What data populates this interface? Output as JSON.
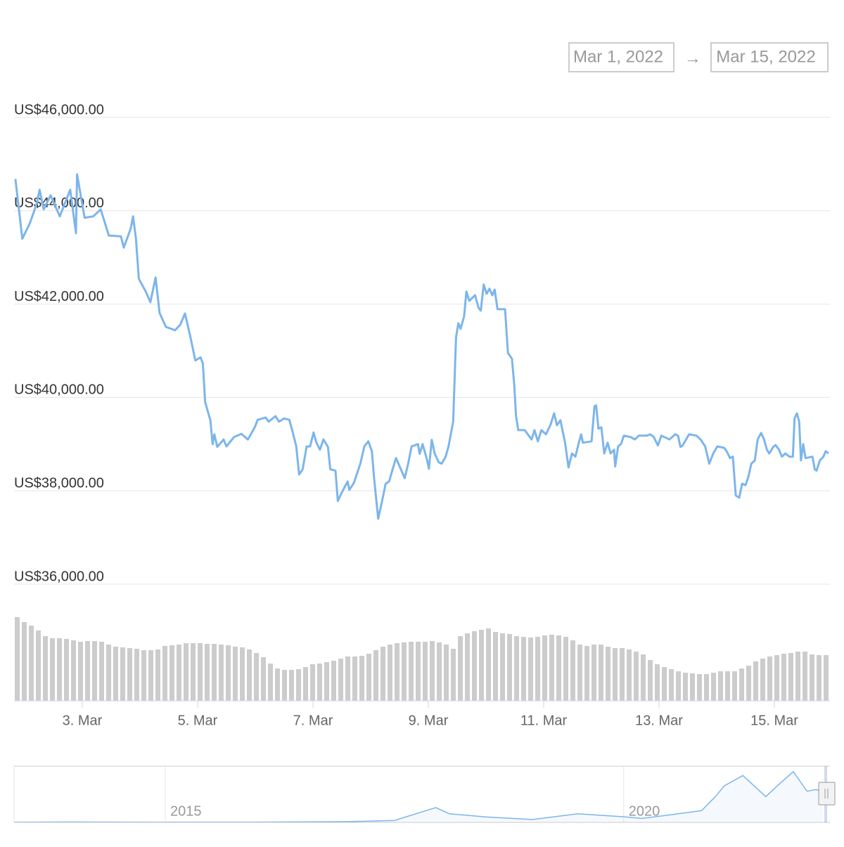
{
  "date_range": {
    "from": "Mar 1, 2022",
    "separator": "→",
    "to": "Mar 15, 2022"
  },
  "chart_data": {
    "type": "line",
    "color": "#7cb5ec",
    "x": [
      1.84,
      1.96,
      2.09,
      2.21,
      2.26,
      2.33,
      2.45,
      2.61,
      2.79,
      2.89,
      2.91,
      3.04,
      3.19,
      3.32,
      3.46,
      3.67,
      3.72,
      3.84,
      3.88,
      3.93,
      3.98,
      4.1,
      4.18,
      4.27,
      4.34,
      4.45,
      4.61,
      4.7,
      4.78,
      4.87,
      4.96,
      5.05,
      5.09,
      5.13,
      5.22,
      5.26,
      5.29,
      5.34,
      5.45,
      5.5,
      5.63,
      5.76,
      5.87,
      5.99,
      6.04,
      6.18,
      6.23,
      6.35,
      6.41,
      6.5,
      6.59,
      6.65,
      6.71,
      6.76,
      6.82,
      6.89,
      6.95,
      7.01,
      7.06,
      7.12,
      7.18,
      7.26,
      7.3,
      7.39,
      7.43,
      7.49,
      7.6,
      7.63,
      7.71,
      7.82,
      7.89,
      7.96,
      8.02,
      8.06,
      8.13,
      8.2,
      8.26,
      8.32,
      8.38,
      8.44,
      8.51,
      8.59,
      8.65,
      8.71,
      8.82,
      8.85,
      8.9,
      8.98,
      9.01,
      9.06,
      9.11,
      9.18,
      9.23,
      9.3,
      9.35,
      9.43,
      9.48,
      9.52,
      9.56,
      9.62,
      9.66,
      9.71,
      9.81,
      9.87,
      9.91,
      9.96,
      10.01,
      10.06,
      10.11,
      10.15,
      10.2,
      10.33,
      10.38,
      10.45,
      10.49,
      10.52,
      10.56,
      10.67,
      10.79,
      10.84,
      10.9,
      10.96,
      11.04,
      11.12,
      11.18,
      11.23,
      11.29,
      11.37,
      11.43,
      11.49,
      11.55,
      11.61,
      11.65,
      11.68,
      11.83,
      11.88,
      11.91,
      11.95,
      12.0,
      12.05,
      12.11,
      12.16,
      12.22,
      12.24,
      12.29,
      12.34,
      12.39,
      12.51,
      12.58,
      12.65,
      12.79,
      12.85,
      12.91,
      12.98,
      13.04,
      13.18,
      13.28,
      13.33,
      13.37,
      13.41,
      13.52,
      13.65,
      13.72,
      13.8,
      13.87,
      13.94,
      14.01,
      14.13,
      14.18,
      14.23,
      14.28,
      14.33,
      14.39,
      14.44,
      14.5,
      14.55,
      14.6,
      14.66,
      14.71,
      14.77,
      14.82,
      14.87,
      14.91,
      14.98,
      15.02,
      15.08,
      15.13,
      15.19,
      15.26,
      15.32,
      15.35,
      15.39,
      15.43,
      15.46,
      15.5,
      15.54,
      15.66,
      15.7,
      15.73,
      15.79,
      15.85,
      15.89,
      15.94
    ],
    "values": [
      44680,
      43400,
      43730,
      44150,
      44450,
      44030,
      44330,
      43880,
      44450,
      43520,
      44780,
      43850,
      43880,
      44030,
      43470,
      43450,
      43210,
      43620,
      43880,
      43400,
      42540,
      42270,
      42040,
      42570,
      41810,
      41510,
      41440,
      41560,
      41800,
      41320,
      40790,
      40860,
      40730,
      39900,
      39510,
      39000,
      39210,
      38940,
      39100,
      38950,
      39150,
      39220,
      39100,
      39360,
      39520,
      39570,
      39480,
      39600,
      39480,
      39550,
      39520,
      39250,
      38950,
      38350,
      38460,
      38950,
      38950,
      39250,
      39030,
      38880,
      39100,
      38940,
      38460,
      38430,
      37780,
      37940,
      38200,
      38020,
      38170,
      38580,
      38950,
      39060,
      38850,
      38270,
      37400,
      37790,
      38150,
      38200,
      38460,
      38700,
      38500,
      38270,
      38580,
      38950,
      39000,
      38790,
      39000,
      38650,
      38470,
      39090,
      38800,
      38610,
      38580,
      38730,
      38950,
      39480,
      41290,
      41590,
      41470,
      41740,
      42270,
      42070,
      42190,
      41920,
      41860,
      42420,
      42220,
      42330,
      42190,
      42310,
      41890,
      41890,
      40950,
      40830,
      40260,
      39600,
      39300,
      39300,
      39100,
      39300,
      39060,
      39300,
      39210,
      39420,
      39660,
      39400,
      39510,
      39030,
      38500,
      38800,
      38730,
      39030,
      39210,
      39030,
      39060,
      39810,
      39830,
      39330,
      39360,
      38800,
      39030,
      38800,
      38880,
      38520,
      38950,
      39000,
      39180,
      39150,
      39100,
      39180,
      39180,
      39210,
      39150,
      38970,
      39180,
      39100,
      39210,
      39180,
      38940,
      38970,
      39210,
      39180,
      39100,
      38950,
      38580,
      38800,
      38950,
      38920,
      38830,
      38700,
      38730,
      37900,
      37850,
      38150,
      38120,
      38300,
      38580,
      38650,
      39100,
      39240,
      39100,
      38880,
      38800,
      38940,
      38980,
      38880,
      38730,
      38800,
      38730,
      38730,
      39550,
      39660,
      39480,
      38650,
      39000,
      38700,
      38730,
      38460,
      38430,
      38650,
      38730,
      38850,
      38800
    ],
    "xlim": [
      1.817,
      15.963
    ],
    "xticks": [
      {
        "value": 3,
        "label": "3. Mar"
      },
      {
        "value": 5,
        "label": "5. Mar"
      },
      {
        "value": 7,
        "label": "7. Mar"
      },
      {
        "value": 9,
        "label": "9. Mar"
      },
      {
        "value": 11,
        "label": "11. Mar"
      },
      {
        "value": 13,
        "label": "13. Mar"
      },
      {
        "value": 15,
        "label": "15. Mar"
      }
    ],
    "ylim": [
      36000,
      46000
    ],
    "yticks": [
      {
        "value": 36000,
        "label": "US$36,000.00"
      },
      {
        "value": 38000,
        "label": "US$38,000.00"
      },
      {
        "value": 40000,
        "label": "US$40,000.00"
      },
      {
        "value": 42000,
        "label": "US$42,000.00"
      },
      {
        "value": 44000,
        "label": "US$44,000.00"
      },
      {
        "value": 46000,
        "label": "US$46,000.00"
      }
    ],
    "grid": true,
    "volume": {
      "color": "#cccccc",
      "ylim": [
        0,
        130
      ],
      "values": [
        119,
        112,
        107,
        100,
        92,
        89,
        89,
        88,
        86,
        84,
        85,
        85,
        84,
        80,
        77,
        76,
        75,
        74,
        72,
        72,
        73,
        78,
        79,
        80,
        82,
        82,
        82,
        81,
        81,
        80,
        79,
        77,
        76,
        73,
        68,
        62,
        53,
        46,
        44,
        44,
        45,
        48,
        52,
        53,
        55,
        57,
        60,
        63,
        63,
        64,
        67,
        72,
        77,
        80,
        82,
        83,
        84,
        84,
        84,
        85,
        83,
        80,
        74,
        92,
        96,
        99,
        101,
        103,
        98,
        96,
        95,
        92,
        91,
        90,
        91,
        93,
        94,
        93,
        91,
        86,
        80,
        78,
        80,
        80,
        77,
        75,
        75,
        73,
        70,
        66,
        58,
        52,
        48,
        45,
        42,
        40,
        39,
        38,
        38,
        40,
        42,
        42,
        42,
        46,
        50,
        56,
        60,
        63,
        65,
        67,
        68,
        70,
        70,
        66,
        65,
        65
      ]
    },
    "navigator": {
      "color": "#7cb5ec",
      "x": [
        2013.35,
        2014,
        2015,
        2016,
        2017,
        2017.5,
        2017.95,
        2018.1,
        2018.5,
        2019,
        2019.5,
        2020,
        2020.2,
        2020.5,
        2020.85,
        2021,
        2021.1,
        2021.3,
        2021.55,
        2021.65,
        2021.85,
        2022,
        2022.1,
        2022.17
      ],
      "values": [
        200,
        500,
        300,
        400,
        1000,
        2500,
        19000,
        11000,
        7000,
        3700,
        11000,
        7200,
        5000,
        9500,
        15000,
        33000,
        47000,
        60000,
        33000,
        44000,
        65000,
        40000,
        42000,
        39000
      ],
      "xlim": [
        2013.35,
        2022.25
      ],
      "ylim": [
        0,
        72000
      ],
      "xticks": [
        2015,
        2020
      ]
    }
  }
}
